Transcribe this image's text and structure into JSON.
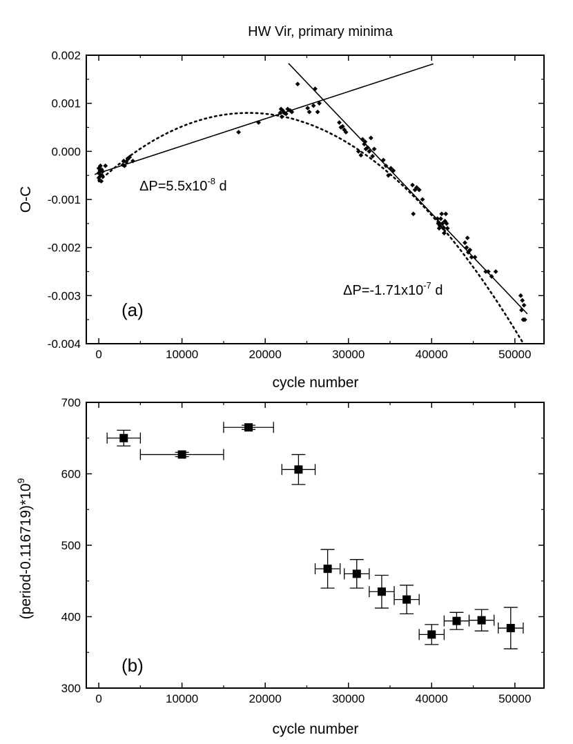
{
  "chart_data": [
    {
      "type": "scatter",
      "panel_label": "(a)",
      "title": "HW Vir, primary minima",
      "xlabel": "cycle number",
      "ylabel": "O-C",
      "xlim": [
        -1500,
        53500
      ],
      "ylim": [
        -0.004,
        0.002
      ],
      "xticks": [
        0,
        10000,
        20000,
        30000,
        40000,
        50000
      ],
      "xtick_labels": [
        "0",
        "10000",
        "20000",
        "30000",
        "40000",
        "50000"
      ],
      "yticks": [
        -0.004,
        -0.003,
        -0.002,
        -0.001,
        0.0,
        0.001,
        0.002
      ],
      "ytick_labels": [
        "-0.004",
        "-0.003",
        "-0.002",
        "-0.001",
        "0.000",
        "0.001",
        "0.002"
      ],
      "grid": false,
      "annotations": [
        {
          "text": "ΔP=5.5x10",
          "exp": "-8",
          "unit": " d"
        },
        {
          "text": "ΔP=-1.71x10",
          "exp": "-7",
          "unit": " d"
        }
      ],
      "fit_lines": [
        {
          "name": "linear fit early",
          "x": [
            -500,
            40200
          ],
          "y": [
            -0.00048,
            0.00182
          ]
        },
        {
          "name": "linear fit late",
          "x": [
            22800,
            51500
          ],
          "y": [
            0.00183,
            -0.00338
          ]
        }
      ],
      "parabola": {
        "name": "quadratic fit",
        "vertex_x": 18000,
        "vertex_y": 0.0008,
        "coeff": -4.4e-12,
        "x_range": [
          0,
          53500
        ]
      },
      "points": [
        [
          0,
          -0.00035
        ],
        [
          0,
          -0.00045
        ],
        [
          0,
          -0.00055
        ],
        [
          100,
          -0.0006
        ],
        [
          150,
          -0.0004
        ],
        [
          200,
          -0.0003
        ],
        [
          250,
          -0.0005
        ],
        [
          300,
          -0.00062
        ],
        [
          350,
          -0.00038
        ],
        [
          400,
          -0.0005
        ],
        [
          450,
          -0.00042
        ],
        [
          800,
          -0.0003
        ],
        [
          2900,
          -0.00028
        ],
        [
          3000,
          -0.0002
        ],
        [
          3100,
          -0.0003
        ],
        [
          3300,
          -0.00022
        ],
        [
          3500,
          -0.00016
        ],
        [
          3700,
          -0.00012
        ],
        [
          4100,
          -0.0002
        ],
        [
          16800,
          0.0004
        ],
        [
          19200,
          0.0006
        ],
        [
          21800,
          0.0008
        ],
        [
          21900,
          0.00088
        ],
        [
          22000,
          0.00072
        ],
        [
          22100,
          0.00085
        ],
        [
          22300,
          0.0008
        ],
        [
          22500,
          0.00078
        ],
        [
          22700,
          0.00088
        ],
        [
          23000,
          0.00085
        ],
        [
          23200,
          0.00082
        ],
        [
          23900,
          0.0014
        ],
        [
          25100,
          0.0009
        ],
        [
          25300,
          0.00082
        ],
        [
          25800,
          0.00095
        ],
        [
          26000,
          0.0013
        ],
        [
          26300,
          0.00082
        ],
        [
          26500,
          0.001
        ],
        [
          28900,
          0.0006
        ],
        [
          29100,
          0.0005
        ],
        [
          29300,
          0.00052
        ],
        [
          29500,
          0.00045
        ],
        [
          29700,
          0.0004
        ],
        [
          31200,
          0.0
        ],
        [
          31500,
          -8e-05
        ],
        [
          31700,
          0.00025
        ],
        [
          31900,
          0.00015
        ],
        [
          32000,
          0.0002
        ],
        [
          32100,
          5e-05
        ],
        [
          32300,
          8e-05
        ],
        [
          32500,
          0.0
        ],
        [
          32700,
          0.00028
        ],
        [
          32900,
          -0.0001
        ],
        [
          33100,
          5e-05
        ],
        [
          34200,
          -0.00018
        ],
        [
          34500,
          -0.0003
        ],
        [
          34800,
          -0.0005
        ],
        [
          35100,
          -0.00035
        ],
        [
          35400,
          -0.0004
        ],
        [
          37700,
          -0.0007
        ],
        [
          37800,
          -0.0013
        ],
        [
          38000,
          -0.0008
        ],
        [
          38200,
          -0.00075
        ],
        [
          38500,
          -0.0008
        ],
        [
          38900,
          -0.001
        ],
        [
          40700,
          -0.0014
        ],
        [
          40800,
          -0.0015
        ],
        [
          40900,
          -0.0016
        ],
        [
          41000,
          -0.00155
        ],
        [
          41100,
          -0.0014
        ],
        [
          41200,
          -0.0013
        ],
        [
          41300,
          -0.0015
        ],
        [
          41400,
          -0.0016
        ],
        [
          41500,
          -0.0017
        ],
        [
          41600,
          -0.00145
        ],
        [
          41700,
          -0.0013
        ],
        [
          41800,
          -0.0015
        ],
        [
          41900,
          -0.0016
        ],
        [
          44000,
          -0.0019
        ],
        [
          44200,
          -0.002
        ],
        [
          44300,
          -0.0018
        ],
        [
          44400,
          -0.0021
        ],
        [
          44600,
          -0.00205
        ],
        [
          44800,
          -0.0022
        ],
        [
          45200,
          -0.0022
        ],
        [
          46500,
          -0.0025
        ],
        [
          46800,
          -0.0025
        ],
        [
          47200,
          -0.0026
        ],
        [
          47700,
          -0.0025
        ],
        [
          50700,
          -0.003
        ],
        [
          50800,
          -0.0033
        ],
        [
          50900,
          -0.0031
        ],
        [
          51000,
          -0.0035
        ],
        [
          51100,
          -0.0032
        ],
        [
          51200,
          -0.0035
        ]
      ]
    },
    {
      "type": "scatter",
      "panel_label": "(b)",
      "xlabel": "cycle number",
      "ylabel": "(period-0.116719)*10",
      "ylabel_exp": "9",
      "xlim": [
        -1500,
        53500
      ],
      "ylim": [
        300,
        700
      ],
      "xticks": [
        0,
        10000,
        20000,
        30000,
        40000,
        50000
      ],
      "xtick_labels": [
        "0",
        "10000",
        "20000",
        "30000",
        "40000",
        "50000"
      ],
      "yticks": [
        300,
        400,
        500,
        600,
        700
      ],
      "ytick_labels": [
        "300",
        "400",
        "500",
        "600",
        "700"
      ],
      "grid": false,
      "points": [
        {
          "x": 3000,
          "y": 650,
          "x_err": 2000,
          "y_err": 11
        },
        {
          "x": 10000,
          "y": 627,
          "x_err": 5000,
          "y_err": 3
        },
        {
          "x": 18000,
          "y": 665,
          "x_err": 3000,
          "y_err": 3
        },
        {
          "x": 24000,
          "y": 606,
          "x_err": 2000,
          "y_err": 21
        },
        {
          "x": 27500,
          "y": 467,
          "x_err": 1500,
          "y_err": 27
        },
        {
          "x": 31000,
          "y": 460,
          "x_err": 1500,
          "y_err": 20
        },
        {
          "x": 34000,
          "y": 435,
          "x_err": 1500,
          "y_err": 23
        },
        {
          "x": 37000,
          "y": 424,
          "x_err": 1500,
          "y_err": 20
        },
        {
          "x": 40000,
          "y": 375,
          "x_err": 1500,
          "y_err": 14
        },
        {
          "x": 43000,
          "y": 394,
          "x_err": 1500,
          "y_err": 12
        },
        {
          "x": 46000,
          "y": 395,
          "x_err": 1500,
          "y_err": 15
        },
        {
          "x": 49500,
          "y": 384,
          "x_err": 1500,
          "y_err": 29
        }
      ]
    }
  ]
}
